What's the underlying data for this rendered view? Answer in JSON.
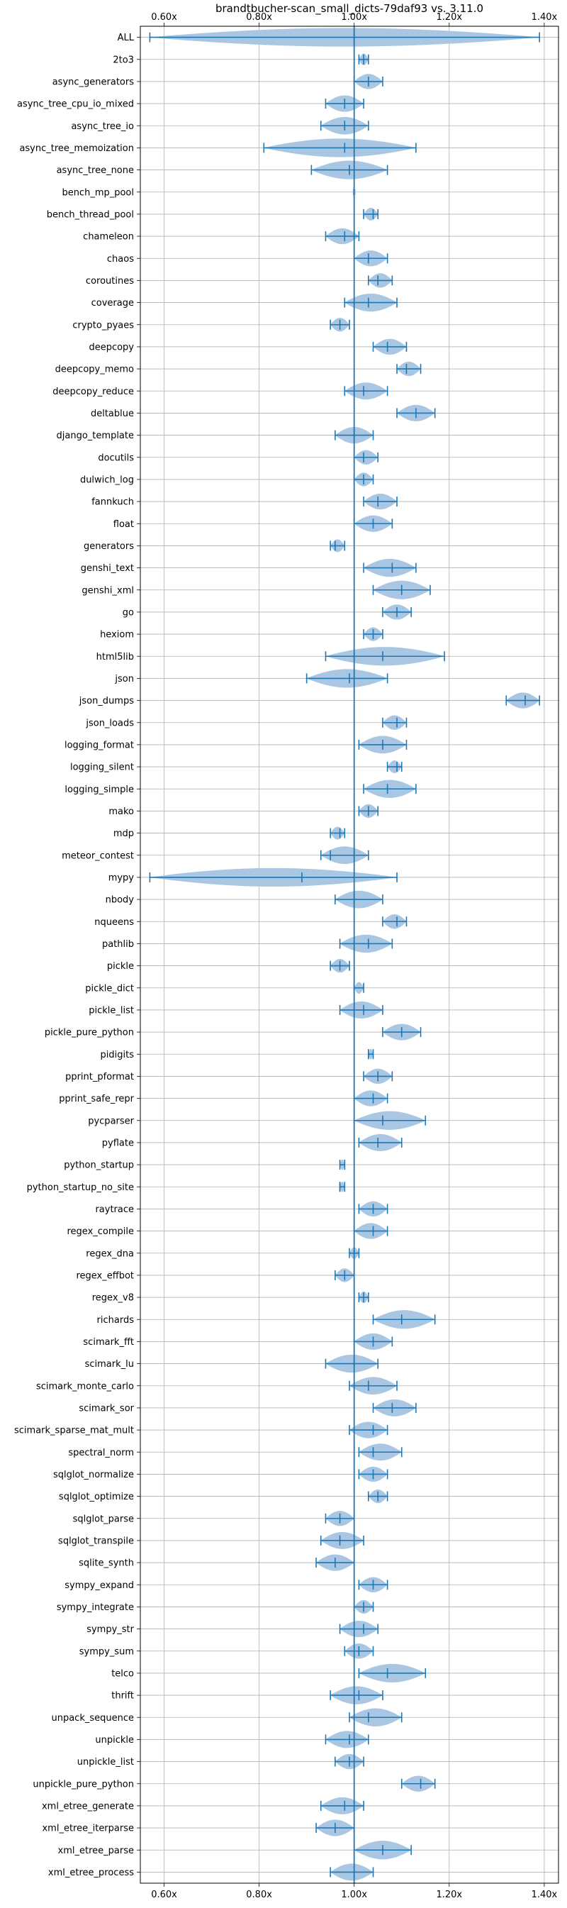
{
  "chart_data": {
    "type": "violin",
    "title": "brandtbucher-scan_small_dicts-79daf93 vs. 3.11.0",
    "xlabel": "",
    "ylabel": "",
    "xlim": [
      0.55,
      1.43
    ],
    "xticks": [
      0.6,
      0.8,
      1.0,
      1.2,
      1.4
    ],
    "xtick_labels": [
      "0.60x",
      "0.80x",
      "1.00x",
      "1.20x",
      "1.40x"
    ],
    "reference_line": 1.0,
    "grid": true,
    "colors": {
      "body": "#a9c7e3",
      "line": "#1f77b4",
      "grid": "#b0b0b0"
    },
    "benchmarks": [
      {
        "name": "ALL",
        "min": 0.57,
        "median": 1.0,
        "max": 1.39
      },
      {
        "name": "2to3",
        "min": 1.01,
        "median": 1.02,
        "max": 1.03
      },
      {
        "name": "async_generators",
        "min": 1.0,
        "median": 1.03,
        "max": 1.06
      },
      {
        "name": "async_tree_cpu_io_mixed",
        "min": 0.94,
        "median": 0.98,
        "max": 1.02
      },
      {
        "name": "async_tree_io",
        "min": 0.93,
        "median": 0.98,
        "max": 1.03
      },
      {
        "name": "async_tree_memoization",
        "min": 0.81,
        "median": 0.98,
        "max": 1.13
      },
      {
        "name": "async_tree_none",
        "min": 0.91,
        "median": 0.99,
        "max": 1.07
      },
      {
        "name": "bench_mp_pool",
        "min": 1.0,
        "median": 1.0,
        "max": 1.0
      },
      {
        "name": "bench_thread_pool",
        "min": 1.02,
        "median": 1.04,
        "max": 1.05
      },
      {
        "name": "chameleon",
        "min": 0.94,
        "median": 0.98,
        "max": 1.01
      },
      {
        "name": "chaos",
        "min": 1.0,
        "median": 1.03,
        "max": 1.07
      },
      {
        "name": "coroutines",
        "min": 1.03,
        "median": 1.05,
        "max": 1.08
      },
      {
        "name": "coverage",
        "min": 0.98,
        "median": 1.03,
        "max": 1.09
      },
      {
        "name": "crypto_pyaes",
        "min": 0.95,
        "median": 0.97,
        "max": 0.99
      },
      {
        "name": "deepcopy",
        "min": 1.04,
        "median": 1.07,
        "max": 1.11
      },
      {
        "name": "deepcopy_memo",
        "min": 1.09,
        "median": 1.11,
        "max": 1.14
      },
      {
        "name": "deepcopy_reduce",
        "min": 0.98,
        "median": 1.02,
        "max": 1.07
      },
      {
        "name": "deltablue",
        "min": 1.09,
        "median": 1.13,
        "max": 1.17
      },
      {
        "name": "django_template",
        "min": 0.96,
        "median": 1.0,
        "max": 1.04
      },
      {
        "name": "docutils",
        "min": 1.0,
        "median": 1.02,
        "max": 1.05
      },
      {
        "name": "dulwich_log",
        "min": 1.0,
        "median": 1.02,
        "max": 1.04
      },
      {
        "name": "fannkuch",
        "min": 1.02,
        "median": 1.05,
        "max": 1.09
      },
      {
        "name": "float",
        "min": 1.0,
        "median": 1.04,
        "max": 1.08
      },
      {
        "name": "generators",
        "min": 0.95,
        "median": 0.96,
        "max": 0.98
      },
      {
        "name": "genshi_text",
        "min": 1.02,
        "median": 1.08,
        "max": 1.13
      },
      {
        "name": "genshi_xml",
        "min": 1.04,
        "median": 1.1,
        "max": 1.16
      },
      {
        "name": "go",
        "min": 1.06,
        "median": 1.09,
        "max": 1.12
      },
      {
        "name": "hexiom",
        "min": 1.02,
        "median": 1.04,
        "max": 1.06
      },
      {
        "name": "html5lib",
        "min": 0.94,
        "median": 1.06,
        "max": 1.19
      },
      {
        "name": "json",
        "min": 0.9,
        "median": 0.99,
        "max": 1.07
      },
      {
        "name": "json_dumps",
        "min": 1.32,
        "median": 1.36,
        "max": 1.39
      },
      {
        "name": "json_loads",
        "min": 1.06,
        "median": 1.09,
        "max": 1.11
      },
      {
        "name": "logging_format",
        "min": 1.01,
        "median": 1.06,
        "max": 1.11
      },
      {
        "name": "logging_silent",
        "min": 1.07,
        "median": 1.09,
        "max": 1.1
      },
      {
        "name": "logging_simple",
        "min": 1.02,
        "median": 1.07,
        "max": 1.13
      },
      {
        "name": "mako",
        "min": 1.01,
        "median": 1.03,
        "max": 1.05
      },
      {
        "name": "mdp",
        "min": 0.95,
        "median": 0.97,
        "max": 0.98
      },
      {
        "name": "meteor_contest",
        "min": 0.93,
        "median": 0.95,
        "max": 1.03
      },
      {
        "name": "mypy",
        "min": 0.57,
        "median": 0.89,
        "max": 1.09
      },
      {
        "name": "nbody",
        "min": 0.96,
        "median": 1.0,
        "max": 1.06
      },
      {
        "name": "nqueens",
        "min": 1.06,
        "median": 1.09,
        "max": 1.11
      },
      {
        "name": "pathlib",
        "min": 0.97,
        "median": 1.03,
        "max": 1.08
      },
      {
        "name": "pickle",
        "min": 0.95,
        "median": 0.97,
        "max": 0.99
      },
      {
        "name": "pickle_dict",
        "min": 1.0,
        "median": 1.0,
        "max": 1.02
      },
      {
        "name": "pickle_list",
        "min": 0.97,
        "median": 1.02,
        "max": 1.06
      },
      {
        "name": "pickle_pure_python",
        "min": 1.06,
        "median": 1.1,
        "max": 1.14
      },
      {
        "name": "pidigits",
        "min": 1.03,
        "median": 1.03,
        "max": 1.04
      },
      {
        "name": "pprint_pformat",
        "min": 1.02,
        "median": 1.05,
        "max": 1.08
      },
      {
        "name": "pprint_safe_repr",
        "min": 1.0,
        "median": 1.04,
        "max": 1.07
      },
      {
        "name": "pycparser",
        "min": 1.0,
        "median": 1.06,
        "max": 1.15
      },
      {
        "name": "pyflate",
        "min": 1.01,
        "median": 1.05,
        "max": 1.1
      },
      {
        "name": "python_startup",
        "min": 0.97,
        "median": 0.98,
        "max": 0.98
      },
      {
        "name": "python_startup_no_site",
        "min": 0.97,
        "median": 0.97,
        "max": 0.98
      },
      {
        "name": "raytrace",
        "min": 1.01,
        "median": 1.04,
        "max": 1.07
      },
      {
        "name": "regex_compile",
        "min": 1.0,
        "median": 1.04,
        "max": 1.07
      },
      {
        "name": "regex_dna",
        "min": 0.99,
        "median": 1.0,
        "max": 1.01
      },
      {
        "name": "regex_effbot",
        "min": 0.96,
        "median": 0.98,
        "max": 1.0
      },
      {
        "name": "regex_v8",
        "min": 1.01,
        "median": 1.02,
        "max": 1.03
      },
      {
        "name": "richards",
        "min": 1.04,
        "median": 1.1,
        "max": 1.17
      },
      {
        "name": "scimark_fft",
        "min": 1.0,
        "median": 1.04,
        "max": 1.08
      },
      {
        "name": "scimark_lu",
        "min": 0.94,
        "median": 1.0,
        "max": 1.05
      },
      {
        "name": "scimark_monte_carlo",
        "min": 0.99,
        "median": 1.03,
        "max": 1.09
      },
      {
        "name": "scimark_sor",
        "min": 1.04,
        "median": 1.08,
        "max": 1.13
      },
      {
        "name": "scimark_sparse_mat_mult",
        "min": 0.99,
        "median": 1.04,
        "max": 1.07
      },
      {
        "name": "spectral_norm",
        "min": 1.01,
        "median": 1.04,
        "max": 1.1
      },
      {
        "name": "sqlglot_normalize",
        "min": 1.01,
        "median": 1.04,
        "max": 1.07
      },
      {
        "name": "sqlglot_optimize",
        "min": 1.03,
        "median": 1.05,
        "max": 1.07
      },
      {
        "name": "sqlglot_parse",
        "min": 0.94,
        "median": 0.97,
        "max": 1.0
      },
      {
        "name": "sqlglot_transpile",
        "min": 0.93,
        "median": 0.97,
        "max": 1.02
      },
      {
        "name": "sqlite_synth",
        "min": 0.92,
        "median": 0.96,
        "max": 1.0
      },
      {
        "name": "sympy_expand",
        "min": 1.01,
        "median": 1.04,
        "max": 1.07
      },
      {
        "name": "sympy_integrate",
        "min": 1.0,
        "median": 1.02,
        "max": 1.04
      },
      {
        "name": "sympy_str",
        "min": 0.97,
        "median": 1.02,
        "max": 1.05
      },
      {
        "name": "sympy_sum",
        "min": 0.98,
        "median": 1.01,
        "max": 1.04
      },
      {
        "name": "telco",
        "min": 1.01,
        "median": 1.07,
        "max": 1.15
      },
      {
        "name": "thrift",
        "min": 0.95,
        "median": 1.01,
        "max": 1.06
      },
      {
        "name": "unpack_sequence",
        "min": 0.99,
        "median": 1.03,
        "max": 1.1
      },
      {
        "name": "unpickle",
        "min": 0.94,
        "median": 0.99,
        "max": 1.03
      },
      {
        "name": "unpickle_list",
        "min": 0.96,
        "median": 0.99,
        "max": 1.02
      },
      {
        "name": "unpickle_pure_python",
        "min": 1.1,
        "median": 1.14,
        "max": 1.17
      },
      {
        "name": "xml_etree_generate",
        "min": 0.93,
        "median": 0.98,
        "max": 1.02
      },
      {
        "name": "xml_etree_iterparse",
        "min": 0.92,
        "median": 0.96,
        "max": 1.0
      },
      {
        "name": "xml_etree_parse",
        "min": 1.0,
        "median": 1.06,
        "max": 1.12
      },
      {
        "name": "xml_etree_process",
        "min": 0.95,
        "median": 1.0,
        "max": 1.04
      }
    ]
  }
}
